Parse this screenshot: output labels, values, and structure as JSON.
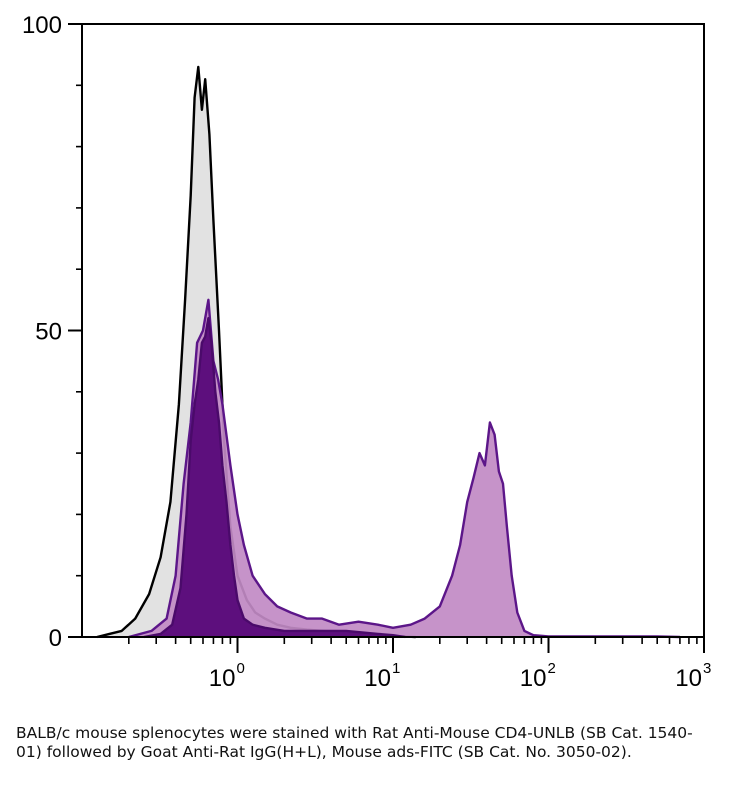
{
  "chart_data": {
    "type": "histogram",
    "x_scale": "log",
    "xlim": [
      0.1,
      1000
    ],
    "ylim": [
      0,
      100
    ],
    "x_ticks": [
      {
        "value": 1,
        "base": "10",
        "exp": "0"
      },
      {
        "value": 10,
        "base": "10",
        "exp": "1"
      },
      {
        "value": 100,
        "base": "10",
        "exp": "2"
      },
      {
        "value": 1000,
        "base": "10",
        "exp": "3"
      }
    ],
    "y_ticks": [
      {
        "value": 0,
        "label": "0"
      },
      {
        "value": 50,
        "label": "50"
      },
      {
        "value": 100,
        "label": "100"
      }
    ],
    "y_minor_ticks": [
      10,
      20,
      30,
      40,
      60,
      70,
      80,
      90
    ],
    "grid": false,
    "legend": "none",
    "series": [
      {
        "fill": "#e2e2e2",
        "stroke": "#000000",
        "x": [
          0.125,
          0.15,
          0.18,
          0.22,
          0.27,
          0.32,
          0.37,
          0.42,
          0.46,
          0.5,
          0.53,
          0.56,
          0.59,
          0.62,
          0.66,
          0.7,
          0.76,
          0.82,
          0.9,
          1.0,
          1.15,
          1.3,
          1.5,
          1.8,
          2.2,
          2.8,
          3.5,
          4.5,
          6,
          8,
          10,
          12,
          14
        ],
        "y": [
          0,
          0.5,
          1,
          3,
          7,
          13,
          22,
          38,
          55,
          72,
          88,
          93,
          86,
          91,
          82,
          68,
          50,
          32,
          18,
          10,
          6,
          4,
          3,
          2,
          1.5,
          1.2,
          1,
          0.8,
          0.6,
          0.4,
          0.2,
          0.1,
          0
        ]
      },
      {
        "fill": "#c18ac4",
        "stroke": "#5c1689",
        "x": [
          0.2,
          0.28,
          0.35,
          0.4,
          0.45,
          0.5,
          0.55,
          0.6,
          0.65,
          0.7,
          0.75,
          0.8,
          0.9,
          1.0,
          1.1,
          1.25,
          1.5,
          1.8,
          2.2,
          2.8,
          3.5,
          4.5,
          6,
          8,
          10,
          13,
          16,
          20,
          24,
          27,
          30,
          33,
          36,
          39,
          42,
          45,
          48,
          51,
          54,
          58,
          63,
          70,
          80,
          90,
          100,
          200,
          300,
          500,
          700
        ],
        "y": [
          0,
          1,
          3,
          10,
          25,
          35,
          48,
          50,
          55,
          45,
          42,
          38,
          28,
          20,
          15,
          10,
          7,
          5,
          4,
          3,
          3,
          2,
          2.5,
          2,
          1.5,
          2,
          3,
          5,
          10,
          15,
          22,
          26,
          30,
          28,
          35,
          33,
          27,
          25,
          18,
          10,
          4,
          1,
          0.3,
          0.2,
          0.1,
          0.1,
          0.1,
          0.1,
          0
        ]
      },
      {
        "fill": "#5d0f7d",
        "stroke": "#4a0a6a",
        "x": [
          0.25,
          0.32,
          0.38,
          0.43,
          0.47,
          0.5,
          0.53,
          0.56,
          0.59,
          0.62,
          0.65,
          0.68,
          0.72,
          0.76,
          0.8,
          0.85,
          0.9,
          0.95,
          1.0,
          1.1,
          1.25,
          1.5,
          2,
          3,
          5,
          8,
          10,
          12
        ],
        "y": [
          0,
          0.5,
          2,
          8,
          20,
          32,
          38,
          42,
          48,
          49,
          52,
          48,
          40,
          35,
          28,
          22,
          15,
          10,
          6,
          3,
          2,
          1.5,
          1,
          1,
          1,
          0.5,
          0.3,
          0
        ]
      }
    ]
  },
  "caption": "BALB/c mouse splenocytes were stained with Rat Anti-Mouse CD4-UNLB (SB Cat. 1540-01) followed by Goat Anti-Rat IgG(H+L), Mouse ads-FITC (SB Cat. No. 3050-02)."
}
